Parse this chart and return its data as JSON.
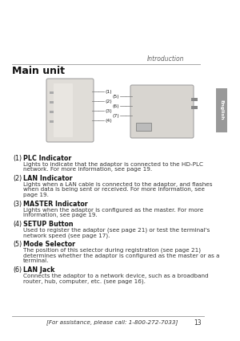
{
  "bg_color": "#ffffff",
  "top_label": "Introduction",
  "section_title": "Main unit",
  "sidebar_label": "English",
  "footer_text": "[For assistance, please call: 1-800-272-7033]",
  "footer_page": "13",
  "items": [
    {
      "num": "(1)",
      "title": "PLC Indicator",
      "body_parts": [
        {
          "text": "Lights to indicate that the adaptor is connected to the ",
          "bold": false
        },
        {
          "text": "HD-PLC",
          "bold": true
        },
        {
          "text": "\nnetwork. For more information, see page 19.",
          "bold": false
        }
      ]
    },
    {
      "num": "(2)",
      "title": "LAN Indicator",
      "body_parts": [
        {
          "text": "Lights when a LAN cable is connected to the adaptor, and flashes\nwhen data is being sent or received. For more information, see\npage 19.",
          "bold": false
        }
      ]
    },
    {
      "num": "(3)",
      "title": "MASTER Indicator",
      "body_parts": [
        {
          "text": "Lights when the adaptor is configured as the master. For more\ninformation, see page 19.",
          "bold": false
        }
      ]
    },
    {
      "num": "(4)",
      "title": "SETUP Button",
      "body_parts": [
        {
          "text": "Used to register the adaptor (see page 21) or test the terminal's\nnetwork speed (see page 17).",
          "bold": false
        }
      ]
    },
    {
      "num": "(5)",
      "title": "Mode Selector",
      "body_parts": [
        {
          "text": "The position of this selector during registration (see page 21)\ndetermines whether the adaptor is configured as the master or as a\nterminal.",
          "bold": false
        }
      ]
    },
    {
      "num": "(6)",
      "title": "LAN Jack",
      "body_parts": [
        {
          "text": "Connects the adaptor to a network device, such as a broadband\nrouter, hub, computer, etc. (see page 16).",
          "bold": false
        }
      ]
    }
  ],
  "diagram": {
    "left_labels": [
      "(1)",
      "(2)",
      "(3)",
      "(4)"
    ],
    "right_labels": [
      "(5)",
      "(6)",
      "(7)"
    ]
  }
}
